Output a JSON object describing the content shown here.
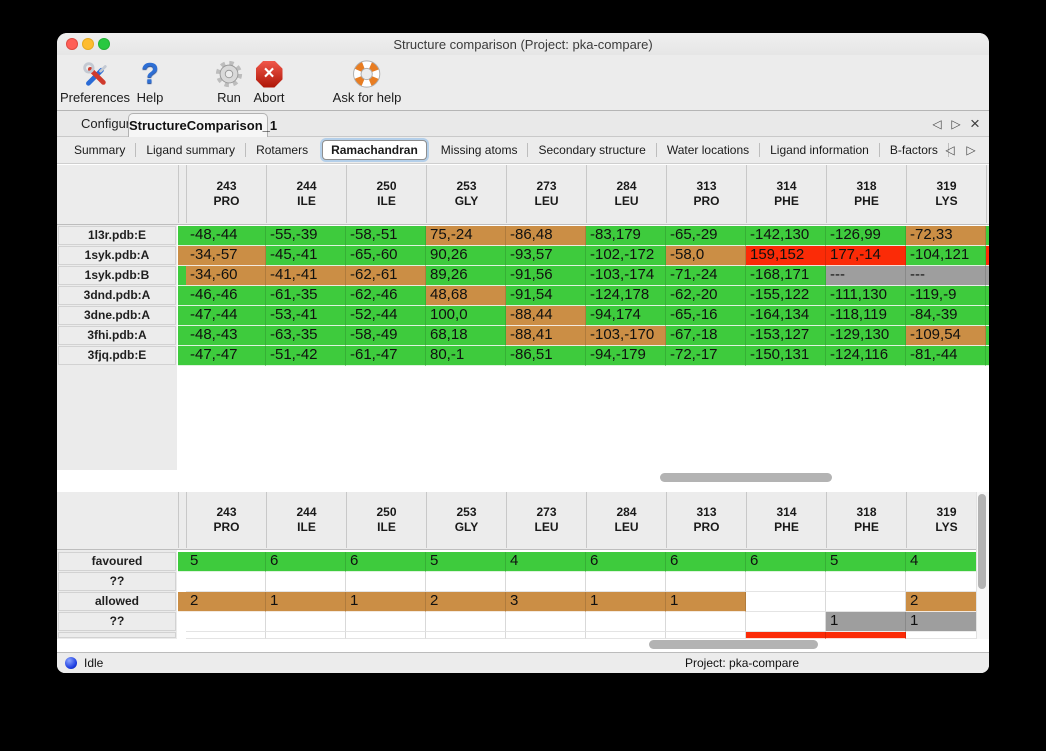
{
  "window_title": "Structure comparison (Project: pka-compare)",
  "toolbar": {
    "items": [
      {
        "label": "Preferences",
        "icon": "tools-icon"
      },
      {
        "label": "Help",
        "icon": "question-mark-icon"
      },
      {
        "label": "Run",
        "icon": "gear-icon"
      },
      {
        "label": "Abort",
        "icon": "stop-icon"
      },
      {
        "label": "Ask for help",
        "icon": "lifebuoy-icon"
      }
    ]
  },
  "tabs": {
    "items": [
      "Configure",
      "StructureComparison_1"
    ],
    "active": "StructureComparison_1"
  },
  "subtabs": {
    "items": [
      "Summary",
      "Ligand summary",
      "Rotamers",
      "Ramachandran",
      "Missing atoms",
      "Secondary structure",
      "Water locations",
      "Ligand information",
      "B-factors"
    ],
    "active": "Ramachandran"
  },
  "icons": {
    "scroll_left": "◁",
    "scroll_right": "▷",
    "close_tab": "×"
  },
  "colors": {
    "green": "#3ecb3d",
    "orange": "#cb8e45",
    "red": "#fb2b07",
    "gray": "#9e9e9e"
  },
  "residue_columns": [
    {
      "number": "243",
      "residue": "PRO"
    },
    {
      "number": "244",
      "residue": "ILE"
    },
    {
      "number": "250",
      "residue": "ILE"
    },
    {
      "number": "253",
      "residue": "GLY"
    },
    {
      "number": "273",
      "residue": "LEU"
    },
    {
      "number": "284",
      "residue": "LEU"
    },
    {
      "number": "313",
      "residue": "PRO"
    },
    {
      "number": "314",
      "residue": "PHE"
    },
    {
      "number": "318",
      "residue": "PHE"
    },
    {
      "number": "319",
      "residue": "LYS"
    }
  ],
  "detail_table": {
    "rows": [
      {
        "label": "1l3r.pdb:E",
        "left": "green",
        "right": "green",
        "cells": [
          {
            "v": "-48,-44",
            "c": "green"
          },
          {
            "v": "-55,-39",
            "c": "green"
          },
          {
            "v": "-58,-51",
            "c": "green"
          },
          {
            "v": "75,-24",
            "c": "orange"
          },
          {
            "v": "-86,48",
            "c": "orange"
          },
          {
            "v": "-83,179",
            "c": "green"
          },
          {
            "v": "-65,-29",
            "c": "green"
          },
          {
            "v": "-142,130",
            "c": "green"
          },
          {
            "v": "-126,99",
            "c": "green"
          },
          {
            "v": "-72,33",
            "c": "orange"
          }
        ]
      },
      {
        "label": "1syk.pdb:A",
        "left": "orange",
        "right": "red",
        "cells": [
          {
            "v": "-34,-57",
            "c": "orange"
          },
          {
            "v": "-45,-41",
            "c": "green"
          },
          {
            "v": "-65,-60",
            "c": "green"
          },
          {
            "v": "90,26",
            "c": "green"
          },
          {
            "v": "-93,57",
            "c": "green"
          },
          {
            "v": "-102,-172",
            "c": "green"
          },
          {
            "v": "-58,0",
            "c": "orange"
          },
          {
            "v": "159,152",
            "c": "red"
          },
          {
            "v": "177,-14",
            "c": "red"
          },
          {
            "v": "-104,121",
            "c": "green"
          }
        ]
      },
      {
        "label": "1syk.pdb:B",
        "left": "green",
        "right": "gray",
        "cells": [
          {
            "v": "-34,-60",
            "c": "orange"
          },
          {
            "v": "-41,-41",
            "c": "orange"
          },
          {
            "v": "-62,-61",
            "c": "orange"
          },
          {
            "v": "89,26",
            "c": "green"
          },
          {
            "v": "-91,56",
            "c": "green"
          },
          {
            "v": "-103,-174",
            "c": "green"
          },
          {
            "v": "-71,-24",
            "c": "green"
          },
          {
            "v": "-168,171",
            "c": "green"
          },
          {
            "v": "---",
            "c": "gray"
          },
          {
            "v": "---",
            "c": "gray"
          }
        ]
      },
      {
        "label": "3dnd.pdb:A",
        "left": "green",
        "right": "green",
        "cells": [
          {
            "v": "-46,-46",
            "c": "green"
          },
          {
            "v": "-61,-35",
            "c": "green"
          },
          {
            "v": "-62,-46",
            "c": "green"
          },
          {
            "v": "48,68",
            "c": "orange"
          },
          {
            "v": "-91,54",
            "c": "green"
          },
          {
            "v": "-124,178",
            "c": "green"
          },
          {
            "v": "-62,-20",
            "c": "green"
          },
          {
            "v": "-155,122",
            "c": "green"
          },
          {
            "v": "-111,130",
            "c": "green"
          },
          {
            "v": "-119,-9",
            "c": "green"
          }
        ]
      },
      {
        "label": "3dne.pdb:A",
        "left": "green",
        "right": "green",
        "cells": [
          {
            "v": "-47,-44",
            "c": "green"
          },
          {
            "v": "-53,-41",
            "c": "green"
          },
          {
            "v": "-52,-44",
            "c": "green"
          },
          {
            "v": "100,0",
            "c": "green"
          },
          {
            "v": "-88,44",
            "c": "orange"
          },
          {
            "v": "-94,174",
            "c": "green"
          },
          {
            "v": "-65,-16",
            "c": "green"
          },
          {
            "v": "-164,134",
            "c": "green"
          },
          {
            "v": "-118,119",
            "c": "green"
          },
          {
            "v": "-84,-39",
            "c": "green"
          }
        ]
      },
      {
        "label": "3fhi.pdb:A",
        "left": "green",
        "right": "green",
        "cells": [
          {
            "v": "-48,-43",
            "c": "green"
          },
          {
            "v": "-63,-35",
            "c": "green"
          },
          {
            "v": "-58,-49",
            "c": "green"
          },
          {
            "v": "68,18",
            "c": "green"
          },
          {
            "v": "-88,41",
            "c": "orange"
          },
          {
            "v": "-103,-170",
            "c": "orange"
          },
          {
            "v": "-67,-18",
            "c": "green"
          },
          {
            "v": "-153,127",
            "c": "green"
          },
          {
            "v": "-129,130",
            "c": "green"
          },
          {
            "v": "-109,54",
            "c": "orange"
          }
        ]
      },
      {
        "label": "3fjq.pdb:E",
        "left": "green",
        "right": "green",
        "cells": [
          {
            "v": "-47,-47",
            "c": "green"
          },
          {
            "v": "-51,-42",
            "c": "green"
          },
          {
            "v": "-61,-47",
            "c": "green"
          },
          {
            "v": "80,-1",
            "c": "green"
          },
          {
            "v": "-86,51",
            "c": "green"
          },
          {
            "v": "-94,-179",
            "c": "green"
          },
          {
            "v": "-72,-17",
            "c": "green"
          },
          {
            "v": "-150,131",
            "c": "green"
          },
          {
            "v": "-124,116",
            "c": "green"
          },
          {
            "v": "-81,-44",
            "c": "green"
          }
        ]
      }
    ]
  },
  "summary_table": {
    "rows": [
      {
        "label": "favoured",
        "left": "green",
        "cells": [
          {
            "v": "5",
            "c": "green"
          },
          {
            "v": "6",
            "c": "green"
          },
          {
            "v": "6",
            "c": "green"
          },
          {
            "v": "5",
            "c": "green"
          },
          {
            "v": "4",
            "c": "green"
          },
          {
            "v": "6",
            "c": "green"
          },
          {
            "v": "6",
            "c": "green"
          },
          {
            "v": "6",
            "c": "green"
          },
          {
            "v": "5",
            "c": "green"
          },
          {
            "v": "4",
            "c": "green"
          }
        ]
      },
      {
        "label": "??",
        "left": "",
        "cells": [
          {
            "v": "",
            "c": ""
          },
          {
            "v": "",
            "c": ""
          },
          {
            "v": "",
            "c": ""
          },
          {
            "v": "",
            "c": ""
          },
          {
            "v": "",
            "c": ""
          },
          {
            "v": "",
            "c": ""
          },
          {
            "v": "",
            "c": ""
          },
          {
            "v": "",
            "c": ""
          },
          {
            "v": "",
            "c": ""
          },
          {
            "v": "",
            "c": ""
          }
        ]
      },
      {
        "label": "allowed",
        "left": "orange",
        "cells": [
          {
            "v": "2",
            "c": "orange"
          },
          {
            "v": "1",
            "c": "orange"
          },
          {
            "v": "1",
            "c": "orange"
          },
          {
            "v": "2",
            "c": "orange"
          },
          {
            "v": "3",
            "c": "orange"
          },
          {
            "v": "1",
            "c": "orange"
          },
          {
            "v": "1",
            "c": "orange"
          },
          {
            "v": "",
            "c": ""
          },
          {
            "v": "",
            "c": ""
          },
          {
            "v": "2",
            "c": "orange"
          }
        ]
      },
      {
        "label": "??",
        "left": "",
        "cells": [
          {
            "v": "",
            "c": ""
          },
          {
            "v": "",
            "c": ""
          },
          {
            "v": "",
            "c": ""
          },
          {
            "v": "",
            "c": ""
          },
          {
            "v": "",
            "c": ""
          },
          {
            "v": "",
            "c": ""
          },
          {
            "v": "",
            "c": ""
          },
          {
            "v": "",
            "c": ""
          },
          {
            "v": "1",
            "c": "gray"
          },
          {
            "v": "1",
            "c": "gray"
          }
        ]
      },
      {
        "label": "",
        "partial": true,
        "left": "",
        "cells": [
          {
            "v": "",
            "c": ""
          },
          {
            "v": "",
            "c": ""
          },
          {
            "v": "",
            "c": ""
          },
          {
            "v": "",
            "c": ""
          },
          {
            "v": "",
            "c": ""
          },
          {
            "v": "",
            "c": ""
          },
          {
            "v": "",
            "c": ""
          },
          {
            "v": "",
            "c": "red"
          },
          {
            "v": "",
            "c": "red"
          },
          {
            "v": "",
            "c": ""
          }
        ]
      }
    ]
  },
  "status_bar": {
    "status": "Idle",
    "project": "Project: pka-compare"
  }
}
